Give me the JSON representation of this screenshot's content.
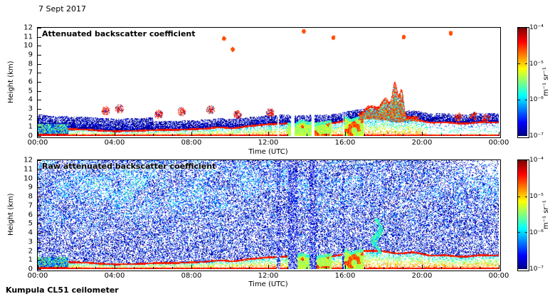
{
  "date_label": "7 Sept 2017",
  "footer_label": "Kumpula CL51 ceilometer",
  "axes": {
    "ylabel": "Height (km)",
    "xlabel": "Time (UTC)",
    "yticks": [
      "0",
      "1",
      "2",
      "3",
      "4",
      "5",
      "6",
      "7",
      "8",
      "9",
      "10",
      "11",
      "12"
    ],
    "xticks": [
      "00:00",
      "04:00",
      "08:00",
      "12:00",
      "16:00",
      "20:00",
      "00:00"
    ]
  },
  "colorbar": {
    "tick_labels": [
      "10⁻⁴",
      "10⁻⁵",
      "10⁻⁶",
      "10⁻⁷"
    ],
    "tick_values": [
      0.0001,
      1e-05,
      1e-06,
      1e-07
    ],
    "unit": "m⁻¹ sr⁻¹",
    "colormap": "jet"
  },
  "panels": [
    {
      "title": "Attenuated backscatter coefficient"
    },
    {
      "title": "Raw attenuated backscatter coefficient"
    }
  ],
  "chart_data": [
    {
      "type": "heatmap",
      "panel": "processed",
      "title": "Attenuated backscatter coefficient",
      "xlabel": "Time (UTC)",
      "ylabel": "Height (km)",
      "x_range_hours": [
        0,
        24
      ],
      "y_range_km": [
        0,
        12
      ],
      "value_range": [
        1e-07,
        0.0001
      ],
      "value_scale": "log10",
      "colormap": "jet",
      "no_signal_color": "#ffffff",
      "boundary_layer_top_km": [
        [
          0,
          1.15
        ],
        [
          0.5,
          1.0
        ],
        [
          1.5,
          0.85
        ],
        [
          2.5,
          0.7
        ],
        [
          4,
          0.6
        ],
        [
          5,
          0.65
        ],
        [
          6,
          0.7
        ],
        [
          7,
          0.75
        ],
        [
          8,
          0.85
        ],
        [
          9,
          0.9
        ],
        [
          10,
          1.0
        ],
        [
          11,
          1.15
        ],
        [
          12,
          1.3
        ],
        [
          13,
          1.4
        ],
        [
          14,
          1.45
        ],
        [
          15,
          1.55
        ],
        [
          15.8,
          1.8
        ],
        [
          16.5,
          2.05
        ],
        [
          17.5,
          2.15
        ],
        [
          18.5,
          2.05
        ],
        [
          19.5,
          1.95
        ],
        [
          20.5,
          1.75
        ],
        [
          21.5,
          1.6
        ],
        [
          22.5,
          1.65
        ],
        [
          23.5,
          1.75
        ],
        [
          24,
          1.8
        ]
      ],
      "surface_layer_note": "strong aerosol backscatter (red/orange) below boundary-layer top with red cap line, white (no signal) above",
      "strong_echo_events": [
        {
          "t0": 13.0,
          "t1": 15.3,
          "top_km": 1.45
        },
        {
          "t0": 15.95,
          "t1": 16.95,
          "top_km": 2.0
        }
      ],
      "elevated_plume": {
        "t0": 16.7,
        "t1": 19.8,
        "base_top_km": 2.3,
        "spikes": [
          {
            "t": 17.4,
            "add_km": 1.2,
            "w": 0.45
          },
          {
            "t": 18.1,
            "add_km": 1.8,
            "w": 0.3
          },
          {
            "t": 18.6,
            "add_km": 4.2,
            "w": 0.2
          },
          {
            "t": 18.95,
            "add_km": 3.2,
            "w": 0.15
          }
        ]
      },
      "speckle_clusters": [
        [
          3.55,
          2.8
        ],
        [
          4.25,
          3.0
        ],
        [
          6.3,
          2.4
        ],
        [
          7.5,
          2.7
        ],
        [
          9.0,
          2.9
        ],
        [
          10.4,
          2.35
        ],
        [
          12.1,
          2.6
        ],
        [
          21.9,
          2.1
        ],
        [
          22.7,
          2.2
        ],
        [
          23.35,
          1.95
        ]
      ],
      "high_specks": [
        [
          9.7,
          10.8
        ],
        [
          10.15,
          9.6
        ],
        [
          13.85,
          11.6
        ],
        [
          15.4,
          10.9
        ],
        [
          19.05,
          10.95
        ],
        [
          21.5,
          11.4
        ]
      ],
      "dropout_stripes": [
        [
          12.45,
          12.62
        ],
        [
          13.05,
          13.5
        ],
        [
          14.15,
          14.5
        ],
        [
          15.85,
          15.97
        ]
      ]
    },
    {
      "type": "heatmap",
      "panel": "raw",
      "title": "Raw attenuated backscatter coefficient",
      "xlabel": "Time (UTC)",
      "ylabel": "Height (km)",
      "x_range_hours": [
        0,
        24
      ],
      "y_range_km": [
        0,
        12
      ],
      "value_range": [
        1e-07,
        0.0001
      ],
      "value_scale": "log10",
      "colormap": "jet",
      "noise_note": "speckle noise fills entire field; strongest (green/orange) between 6 and 12 km, enhanced 00:00-13:00",
      "boundary_layer_top_km": [
        [
          0,
          1.15
        ],
        [
          0.5,
          1.0
        ],
        [
          1.5,
          0.85
        ],
        [
          2.5,
          0.7
        ],
        [
          4,
          0.6
        ],
        [
          5,
          0.65
        ],
        [
          6,
          0.7
        ],
        [
          7,
          0.75
        ],
        [
          8,
          0.85
        ],
        [
          9,
          0.9
        ],
        [
          10,
          1.0
        ],
        [
          11,
          1.15
        ],
        [
          12,
          1.3
        ],
        [
          13,
          1.4
        ],
        [
          14,
          1.45
        ],
        [
          15,
          1.55
        ],
        [
          15.8,
          1.8
        ],
        [
          16.5,
          2.05
        ],
        [
          17.5,
          2.15
        ],
        [
          18.5,
          2.05
        ],
        [
          19.5,
          1.95
        ],
        [
          20.5,
          1.75
        ],
        [
          21.5,
          1.6
        ],
        [
          22.5,
          1.65
        ],
        [
          23.5,
          1.75
        ],
        [
          24,
          1.8
        ]
      ],
      "strong_echo_events": [
        {
          "t0": 13.0,
          "t1": 15.3,
          "top_km": 1.45
        },
        {
          "t0": 15.95,
          "t1": 16.95,
          "top_km": 2.0
        }
      ],
      "elevated_blob": {
        "t0": 17.5,
        "t1": 18.3,
        "h0": 1.7,
        "h1": 5.6
      },
      "dropout_stripes": [
        [
          12.45,
          12.62
        ],
        [
          13.05,
          13.5
        ],
        [
          14.15,
          14.5
        ],
        [
          15.85,
          15.97
        ]
      ]
    }
  ]
}
